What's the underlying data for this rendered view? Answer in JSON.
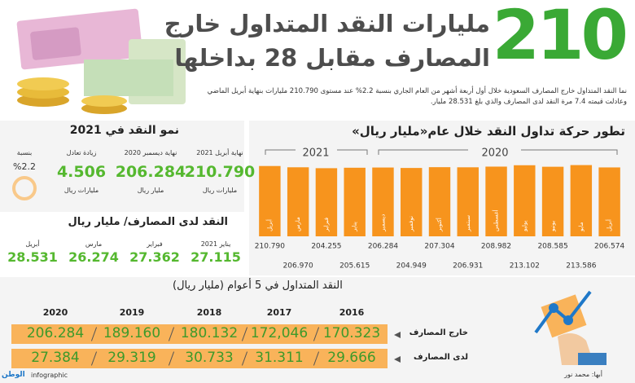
{
  "header": {
    "big_number": "210",
    "title_lines": [
      "مليارات النقد المتداول خارج",
      "المصارف مقابل 28 بداخلها"
    ],
    "intro": "نما النقد المتداول خارج المصارف السعودية خلال أول أربعة أشهر من العام الجاري بنسبة 2.2% عند مستوى 210.790 مليارات بنهاية أبريل الماضي وعادلت قيمته 7.4 مرة النقد لدى المصارف والذي بلغ 28.531 مليار."
  },
  "growth": {
    "title": "نمو النقد في 2021",
    "items": [
      {
        "label": "نهاية أبريل 2021",
        "value": "210.790",
        "unit": "مليارات ريال"
      },
      {
        "label": "نهاية ديسمبر 2020",
        "value": "206.284",
        "unit": "مليار ريال"
      },
      {
        "label": "زيادة تعادل",
        "value": "4.506",
        "unit": "مليارات ريال"
      },
      {
        "label": "بنسبة",
        "value": "%2.2"
      }
    ]
  },
  "banks": {
    "title": "النقد لدى المصارف/ مليار ريال",
    "items": [
      {
        "label": "يناير 2021",
        "value": "27.115"
      },
      {
        "label": "فبراير",
        "value": "27.362"
      },
      {
        "label": "مارس",
        "value": "26.274"
      },
      {
        "label": "أبريل",
        "value": "28.531"
      }
    ]
  },
  "chart_data": {
    "type": "bar",
    "title": "تطور حركة تداول النقد خلال عام«مليار ريال»",
    "group_labels": [
      "2021",
      "2020"
    ],
    "categories": [
      "أبريل",
      "مارس",
      "فبراير",
      "يناير",
      "ديسمبر",
      "نوفمبر",
      "أكتوبر",
      "سبتمبر",
      "أغسطس",
      "يوليو",
      "يونيو",
      "مايو",
      "أبريل"
    ],
    "values": [
      210.79,
      206.97,
      204.255,
      205.615,
      206.284,
      204.949,
      207.304,
      206.931,
      208.982,
      213.102,
      208.585,
      213.586,
      206.574
    ],
    "value_labels": [
      "210.790",
      "206.970",
      "204.255",
      "205.615",
      "206.284",
      "204.949",
      "207.304",
      "206.931",
      "208.982",
      "213.102",
      "208.585",
      "213.586",
      "206.574"
    ],
    "color": "#f7941d",
    "ylim": [
      0,
      215
    ]
  },
  "table": {
    "title": "النقد المتداول في 5 أعوام (مليار ريال)",
    "columns": [
      "2016",
      "2017",
      "2018",
      "2019",
      "2020"
    ],
    "rows": [
      {
        "label": "خارج المصارف",
        "values": [
          "170.323",
          "172,046",
          "180.132",
          "189.160",
          "206.284"
        ]
      },
      {
        "label": "لدى المصارف",
        "values": [
          "29.666",
          "31.311",
          "30.733",
          "29.319",
          "27.384"
        ]
      }
    ]
  },
  "footer": {
    "credit": "أبها: محمد نور",
    "brand": "الوطن",
    "brand_sub": "infographic"
  }
}
